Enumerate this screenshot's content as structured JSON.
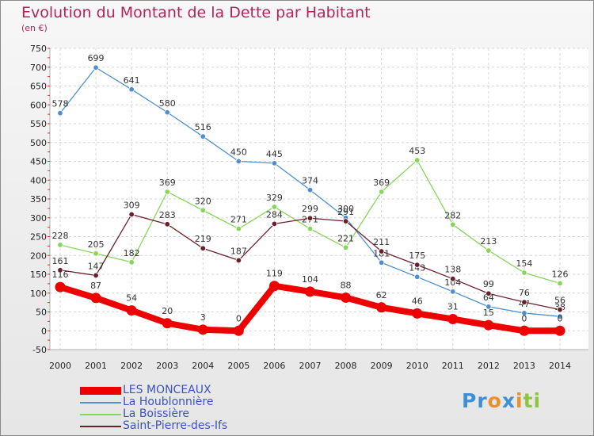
{
  "chart_data": {
    "type": "line",
    "title": "Evolution du Montant de la Dette par Habitant",
    "subtitle": "(en €)",
    "categories": [
      "2000",
      "2001",
      "2002",
      "2003",
      "2004",
      "2005",
      "2006",
      "2007",
      "2008",
      "2009",
      "2010",
      "2011",
      "2012",
      "2013",
      "2014"
    ],
    "ylim": [
      -50,
      750
    ],
    "yticks": [
      -50,
      0,
      50,
      100,
      150,
      200,
      250,
      300,
      350,
      400,
      450,
      500,
      550,
      600,
      650,
      700,
      750
    ],
    "grid": true,
    "legend_position": "bottom-left",
    "series": [
      {
        "name": "LES MONCEAUX",
        "color": "#ee0000",
        "emphasis": true,
        "values": [
          116,
          87,
          54,
          20,
          3,
          0,
          119,
          104,
          88,
          62,
          46,
          31,
          15,
          0,
          0
        ]
      },
      {
        "name": "La Houblonnière",
        "color": "#4f8fcf",
        "values": [
          578,
          699,
          641,
          580,
          516,
          450,
          445,
          374,
          300,
          181,
          143,
          104,
          64,
          47,
          38
        ]
      },
      {
        "name": "La Boissière",
        "color": "#86d65a",
        "values": [
          228,
          205,
          182,
          369,
          320,
          271,
          329,
          271,
          221,
          369,
          453,
          282,
          213,
          154,
          126
        ]
      },
      {
        "name": "Saint-Pierre-des-Ifs",
        "color": "#6b1f2a",
        "values": [
          161,
          147,
          309,
          283,
          219,
          187,
          284,
          299,
          291,
          211,
          175,
          138,
          99,
          76,
          56
        ]
      }
    ]
  },
  "logo": {
    "p1": "Pr",
    "p2": "o",
    "p3": "x",
    "p4": "i",
    "p5": "ti"
  }
}
